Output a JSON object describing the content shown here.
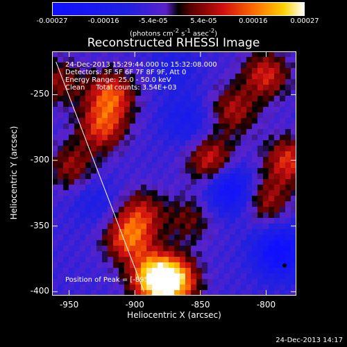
{
  "chart_data": {
    "type": "heatmap",
    "title": "Reconstructed RHESSI Image",
    "xlabel": "Heliocentric X (arcsec)",
    "ylabel": "Heliocentric Y (arcsec)",
    "xlim": [
      -963,
      -777
    ],
    "ylim": [
      -403,
      -217
    ],
    "x_ticks": [
      "-950",
      "-900",
      "-850",
      "-800"
    ],
    "x_tick_values": [
      -950,
      -900,
      -850,
      -800
    ],
    "y_ticks": [
      "-250",
      "-300",
      "-350",
      "-400"
    ],
    "y_tick_values": [
      -250,
      -300,
      -350,
      -400
    ],
    "colorbar": {
      "ticks": [
        "-0.00027",
        "-0.00016",
        "-5.4e-05",
        "5.4e-05",
        "0.00016",
        "0.00027"
      ],
      "tick_values": [
        -0.00027,
        -0.00016,
        -5.4e-05,
        5.4e-05,
        0.00016,
        0.00027
      ],
      "range": [
        -0.00027,
        0.00027
      ],
      "units_main": "(photons cm",
      "units_sup1": "-2",
      "units_mid": " s",
      "units_sup2": "-1",
      "units_end": " asec",
      "units_sup3": "-2",
      "units_close": ")"
    },
    "annotations": {
      "time_range": "24-Dec-2013 15:29:44.000 to 15:32:08.000",
      "detectors": "Detectors: 3F 5F 6F 7F 8F 9F, Att 0",
      "energy": "Energy Range: 25.0 - 50.0 keV",
      "clean": "Clean     Total counts: 3.54E+03",
      "peak": "Position of Peak = [-895,-402]"
    },
    "peak_position": [
      -895,
      -402
    ],
    "limb_line": [
      [
        -960,
        -225
      ],
      [
        -893,
        -400
      ]
    ],
    "blobs": [
      {
        "x": -885,
        "y": -390,
        "value": 0.00027
      },
      {
        "x": -870,
        "y": -392,
        "value": 0.00024
      },
      {
        "x": -905,
        "y": -360,
        "value": 0.00018
      },
      {
        "x": -895,
        "y": -340,
        "value": 0.00012
      },
      {
        "x": -918,
        "y": -250,
        "value": 0.00018
      },
      {
        "x": -925,
        "y": -275,
        "value": 0.00016
      },
      {
        "x": -948,
        "y": -305,
        "value": 0.00011
      },
      {
        "x": -958,
        "y": -240,
        "value": 0.0001
      },
      {
        "x": -842,
        "y": -300,
        "value": 0.00016
      },
      {
        "x": -825,
        "y": -262,
        "value": 0.00012
      },
      {
        "x": -800,
        "y": -235,
        "value": 0.00015
      },
      {
        "x": -783,
        "y": -300,
        "value": 0.00016
      },
      {
        "x": -800,
        "y": -330,
        "value": 0.00012
      },
      {
        "x": -858,
        "y": -345,
        "value": 8e-05
      },
      {
        "x": -827,
        "y": -322,
        "value": -0.00022
      },
      {
        "x": -790,
        "y": -370,
        "value": -0.00024
      },
      {
        "x": -860,
        "y": -270,
        "value": -0.00012
      },
      {
        "x": -930,
        "y": -330,
        "value": -9e-05
      },
      {
        "x": -870,
        "y": -230,
        "value": -8e-05
      }
    ]
  },
  "footer": {
    "datestamp": "24-Dec-2013 14:17"
  },
  "colors": {
    "background": "#000000",
    "text": "#ffffff"
  }
}
